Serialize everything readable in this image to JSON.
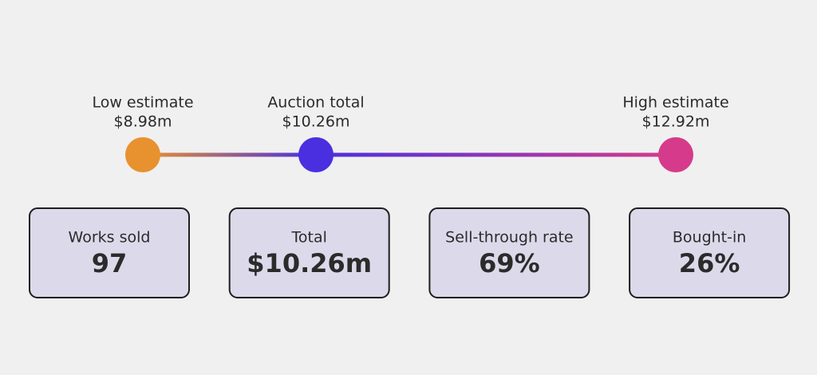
{
  "range": {
    "markers": [
      {
        "label": "Low estimate",
        "value": 8.98,
        "value_label": "$8.98m",
        "color": "#e8912f"
      },
      {
        "label": "Auction total",
        "value": 10.26,
        "value_label": "$10.26m",
        "color": "#4a2fe0"
      },
      {
        "label": "High estimate",
        "value": 12.92,
        "value_label": "$12.92m",
        "color": "#d63a8b"
      }
    ]
  },
  "stats": [
    {
      "label": "Works sold",
      "value": "97"
    },
    {
      "label": "Total",
      "value": "$10.26m"
    },
    {
      "label": "Sell-through rate",
      "value": "69%"
    },
    {
      "label": "Bought-in",
      "value": "26%"
    }
  ]
}
